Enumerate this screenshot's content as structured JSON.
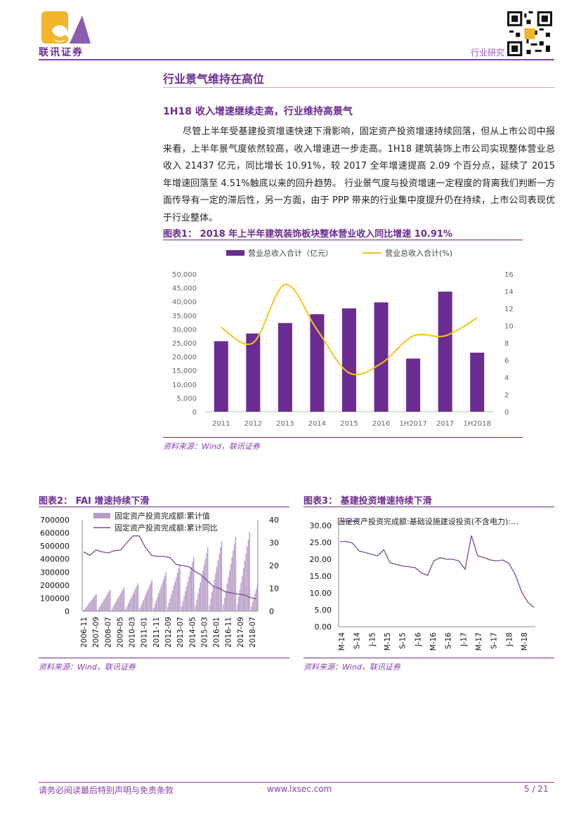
{
  "header": {
    "logo_text": "联讯证券",
    "section_tag": "行业研究"
  },
  "section_title": "行业景气维持在高位",
  "sub_title": "1H18 收入增速继续走高，行业维持高景气",
  "paragraph": "尽管上半年受基建投资增速快速下滑影响，固定资产投资增速持续回落，但从上市公司中报来看，上半年景气度依然较高，收入增速进一步走高。1H18 建筑装饰上市公司实现整体营业总收入 21437 亿元，同比增长 10.91%，较 2017 全年增速提高 2.09 个百分点，延续了 2015 年增速回落至 4.51%触底以来的回升趋势。 行业景气度与投资增速一定程度的背离我们判断一方面传导有一定的滞后性，另一方面，由于 PPP 带来的行业集中度提升仍在持续，上市公司表现优于行业整体。",
  "figures": [
    {
      "title": "图表1：  2018 年上半年建筑装饰板块整体营业收入同比增速 10.91%",
      "source": "资料来源：Wind，联讯证券"
    },
    {
      "title": "图表2：  FAI 增速持续下滑",
      "source": "资料来源：Wind，联讯证券"
    },
    {
      "title": "图表3：  基建投资增速持续下滑",
      "source": "资料来源：Wind，联讯证券"
    }
  ],
  "chart_data": [
    {
      "type": "bar",
      "categories": [
        "2011",
        "2012",
        "2013",
        "2014",
        "2015",
        "2016",
        "1H2017",
        "2017",
        "1H2018"
      ],
      "series": [
        {
          "name": "营业总收入合计（亿元）",
          "type": "bar",
          "axis": "left",
          "values": [
            25600,
            28400,
            32200,
            35400,
            37500,
            39700,
            19300,
            43600,
            21437
          ]
        },
        {
          "name": "营业总收入合计(%)",
          "type": "line",
          "axis": "right",
          "values": [
            9.8,
            8.0,
            14.8,
            9.5,
            4.51,
            5.6,
            8.8,
            8.82,
            10.91
          ]
        }
      ],
      "ylim_left": [
        0,
        50000
      ],
      "ylim_right": [
        0,
        16
      ],
      "yticks_left": [
        "50,000",
        "45,000",
        "40,000",
        "35,000",
        "30,000",
        "25,000",
        "20,000",
        "15,000",
        "10,000",
        "5,000",
        "0"
      ],
      "yticks_right": [
        "16",
        "14",
        "12",
        "10",
        "8",
        "6",
        "4",
        "2",
        "0"
      ],
      "colors": {
        "bar": "#6b2c91",
        "line": "#f5c518"
      },
      "legend": "top"
    },
    {
      "type": "bar",
      "series": [
        {
          "name": "固定资产投资完成额:累计值",
          "type": "bar",
          "axis": "left",
          "color": "#b79cc6"
        },
        {
          "name": "固定资产投资完成额:累计同比",
          "type": "line",
          "axis": "right",
          "color": "#7b4a96"
        }
      ],
      "x_ticks": [
        "2006-11",
        "2007-09",
        "2008-07",
        "2009-05",
        "2010-03",
        "2011-01",
        "2011-11",
        "2012-09",
        "2013-07",
        "2014-05",
        "2015-03",
        "2016-01",
        "2016-11",
        "2017-09",
        "2018-07"
      ],
      "yticks_left": [
        "700000",
        "600000",
        "500000",
        "400000",
        "300000",
        "200000",
        "100000",
        "0"
      ],
      "yticks_right": [
        "40",
        "30",
        "20",
        "10",
        "0"
      ],
      "ylim_left": [
        0,
        700000
      ],
      "ylim_right": [
        0,
        40
      ],
      "yearly_peak_values": [
        137000,
        172000,
        194000,
        224000,
        251000,
        311000,
        374000,
        436000,
        512000,
        562000,
        597000,
        632000,
        395000
      ],
      "yoy_values": [
        26.0,
        24.5,
        26.8,
        26.0,
        25.5,
        26.5,
        26.8,
        30.0,
        33.0,
        33.0,
        28.0,
        24.5,
        24.0,
        24.0,
        23.5,
        20.5,
        20.0,
        19.5,
        17.5,
        16.0,
        13.5,
        11.0,
        10.0,
        8.5,
        8.0,
        7.5,
        7.2,
        6.0,
        5.5
      ]
    },
    {
      "type": "line",
      "series": [
        {
          "name": "固定资产投资完成额:基础设施建设投资(不含电力):…",
          "color": "#7b4a96",
          "values": [
            25.2,
            25.3,
            24.8,
            22.5,
            22.0,
            21.5,
            21.0,
            22.8,
            19.0,
            18.5,
            18.0,
            17.8,
            17.5,
            16.0,
            15.2,
            19.5,
            20.5,
            20.0,
            20.0,
            19.5,
            17.0,
            27.0,
            21.0,
            20.5,
            19.8,
            19.5,
            19.8,
            18.8,
            15.5,
            10.5,
            7.3,
            5.7
          ]
        }
      ],
      "x_ticks": [
        "M-14",
        "S-14",
        "J-15",
        "M-15",
        "S-15",
        "J-16",
        "M-16",
        "S-16",
        "J-17",
        "M-17",
        "S-17",
        "J-18",
        "M-18"
      ],
      "yticks": [
        "30.00",
        "25.00",
        "20.00",
        "15.00",
        "10.00",
        "5.00",
        "0.00"
      ],
      "ylim": [
        0,
        30
      ]
    }
  ],
  "footer": {
    "disclaimer": "请务必阅读最后特别声明与免责条款",
    "website": "www.lxsec.com",
    "page": "5 / 21"
  }
}
